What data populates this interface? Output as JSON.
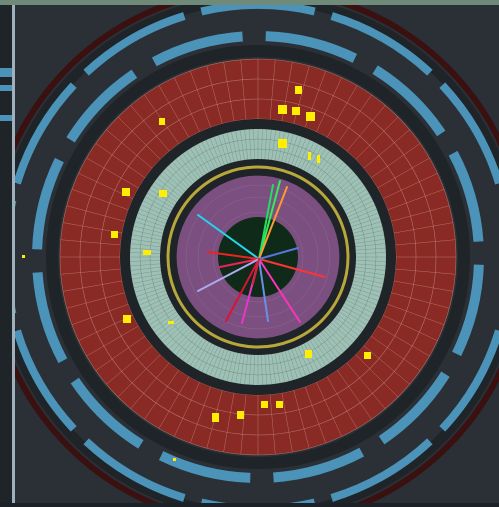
{
  "colors": {
    "background": "#2a3035",
    "dark_ring": "#1e2428",
    "muon_chamber": "#4b93b8",
    "hadron_calorimeter": "#8a2a25",
    "hadron_calorimeter_grid": "#c9908a",
    "em_calorimeter": "#9fc0b5",
    "em_calorimeter_grid": "#6f8f86",
    "solenoid": "#b8a73a",
    "inner_tracker": "#7b4f7f",
    "beam_pipe": "#0f2a18",
    "energy_deposit": "#ffee00",
    "outer_rim": "#3a1010"
  },
  "tracks": [
    {
      "color": "#33ee55"
    },
    {
      "color": "#22dd66"
    },
    {
      "color": "#ff9933"
    },
    {
      "color": "#22d6ee"
    },
    {
      "color": "#ee2222"
    },
    {
      "color": "#dd1133"
    },
    {
      "color": "#ff33bb"
    },
    {
      "color": "#ee33cc"
    },
    {
      "color": "#6b8fe8"
    },
    {
      "color": "#ee2255"
    },
    {
      "color": "#ff3333"
    },
    {
      "color": "#aaaaee"
    },
    {
      "color": "#5577dd"
    },
    {
      "color": "#cc2233"
    }
  ]
}
